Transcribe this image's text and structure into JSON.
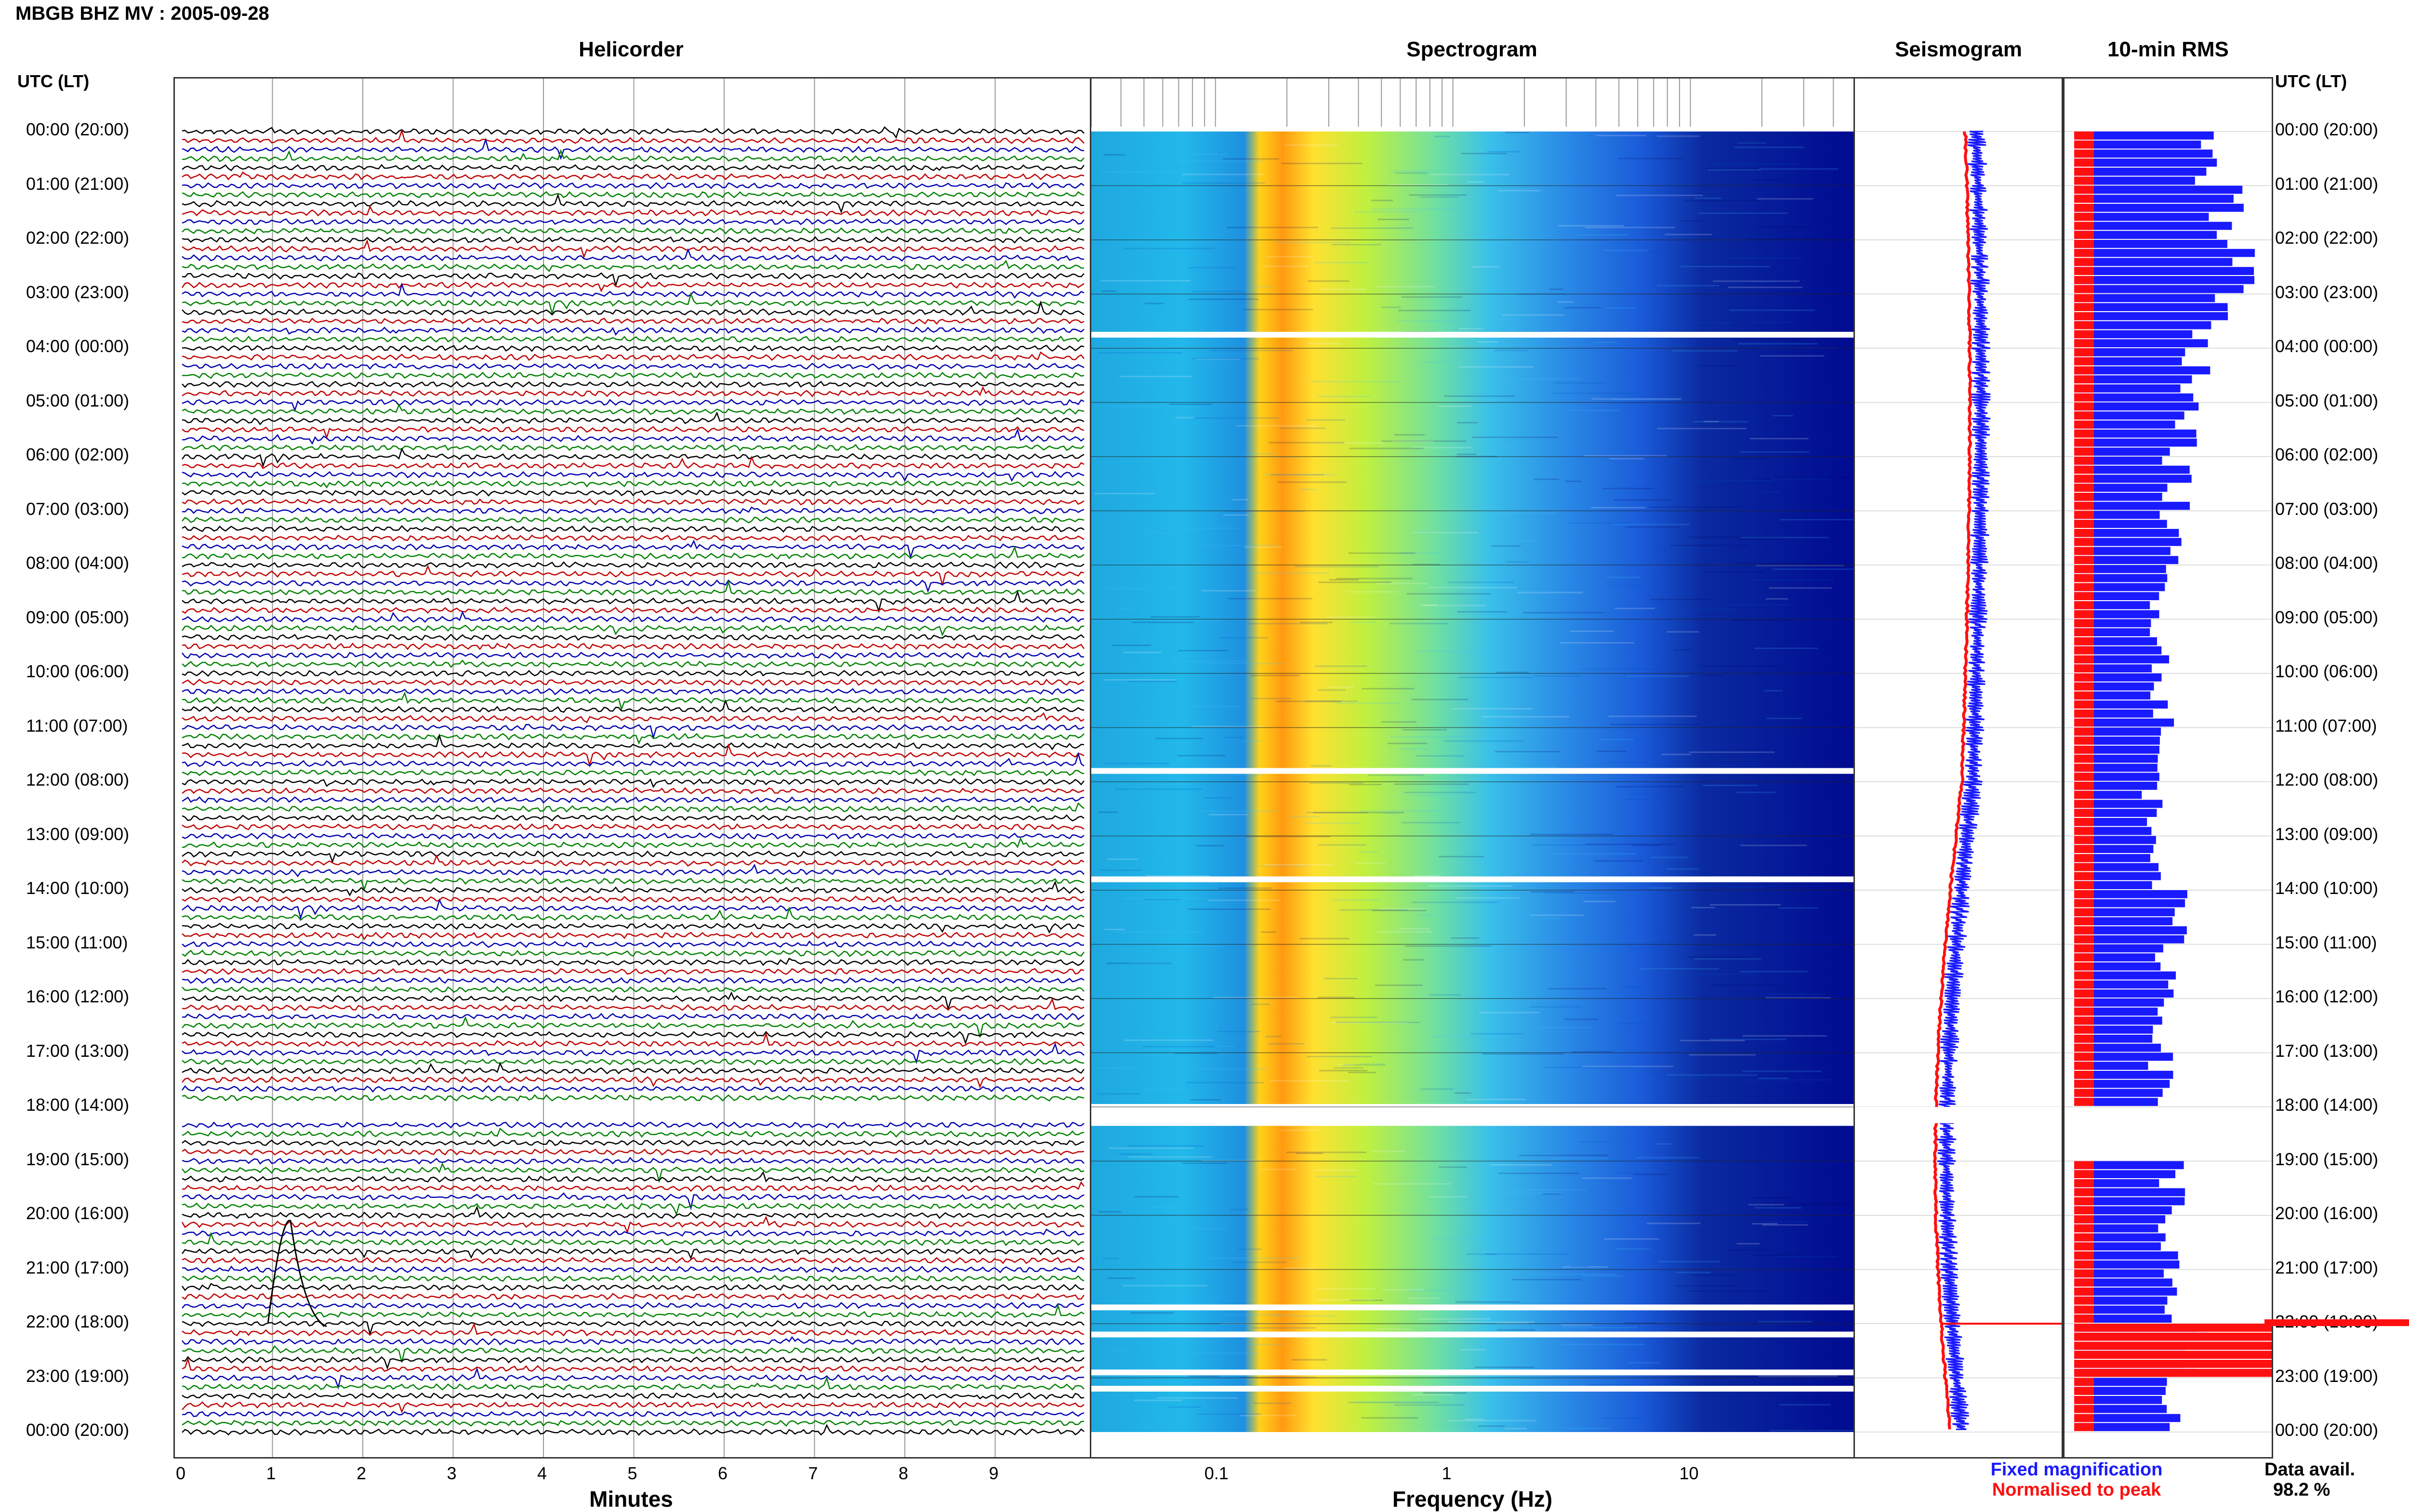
{
  "header": {
    "title": "MBGB BHZ MV : 2005-09-28"
  },
  "panels": {
    "helicorder": {
      "title": "Helicorder",
      "xlabel": "Minutes"
    },
    "spectrogram": {
      "title": "Spectrogram",
      "xlabel": "Frequency (Hz)"
    },
    "seismogram": {
      "title": "Seismogram"
    },
    "rms": {
      "title": "10-min RMS"
    }
  },
  "time_axis": {
    "left_header": "UTC (LT)",
    "right_header": "UTC (LT)",
    "labels": [
      "00:00 (20:00)",
      "01:00 (21:00)",
      "02:00 (22:00)",
      "03:00 (23:00)",
      "04:00 (00:00)",
      "05:00 (01:00)",
      "06:00 (02:00)",
      "07:00 (03:00)",
      "08:00 (04:00)",
      "09:00 (05:00)",
      "10:00 (06:00)",
      "11:00 (07:00)",
      "12:00 (08:00)",
      "13:00 (09:00)",
      "14:00 (10:00)",
      "15:00 (11:00)",
      "16:00 (12:00)",
      "17:00 (13:00)",
      "18:00 (14:00)",
      "19:00 (15:00)",
      "20:00 (16:00)",
      "21:00 (17:00)",
      "22:00 (18:00)",
      "23:00 (19:00)",
      "00:00 (20:00)"
    ]
  },
  "legend": {
    "fixed": "Fixed magnification",
    "normalised": "Normalised to peak",
    "fixed_color": "#1a1aff",
    "normalised_color": "#ff1010"
  },
  "data_availability": {
    "label": "Data avail.",
    "value": "98.2 %"
  },
  "chart_data": [
    {
      "type": "helicorder",
      "xlabel": "Minutes",
      "x_ticks": [
        "0",
        "1",
        "2",
        "3",
        "4",
        "5",
        "6",
        "7",
        "8",
        "9"
      ],
      "xlim": [
        0,
        10
      ],
      "trace_colors": [
        "#000000",
        "#c00000",
        "#0000b0",
        "#008000"
      ],
      "gap_minutes_utc": [
        [
          1080,
          1090
        ]
      ]
    },
    {
      "type": "heatmap",
      "xlabel": "Frequency (Hz)",
      "x_scale": "log",
      "x_ticks": [
        "0.1",
        "1",
        "10"
      ],
      "xlim": [
        0.03,
        50
      ],
      "gaps_hours": [
        3.75,
        11.8,
        13.8,
        18.0,
        18.2,
        21.7,
        22.2,
        22.9,
        23.2
      ],
      "energy_band_hz": [
        0.15,
        0.3
      ]
    },
    {
      "type": "line",
      "name": "Seismogram",
      "series": [
        {
          "name": "Fixed magnification",
          "color": "#1a1aff"
        },
        {
          "name": "Normalised to peak",
          "color": "#ff1010"
        }
      ],
      "event_hour": 22.0
    },
    {
      "type": "bar",
      "name": "10-min RMS",
      "series": [
        {
          "name": "Fixed magnification",
          "color": "#1a1aff",
          "relative_values": [
            0.7,
            0.78,
            0.82,
            0.7,
            0.62,
            0.55,
            0.52,
            0.48,
            0.45,
            0.44,
            0.45,
            0.42,
            0.4,
            0.45,
            0.5,
            0.48,
            0.46,
            0.44,
            0.0,
            0.5,
            0.48,
            0.46,
            0.6,
            0.47
          ]
        },
        {
          "name": "Normalised to peak",
          "color": "#ff1010",
          "relative_values": [
            0.1,
            0.1,
            0.1,
            0.1,
            0.1,
            0.1,
            0.1,
            0.1,
            0.1,
            0.1,
            0.1,
            0.1,
            0.1,
            0.1,
            0.1,
            0.1,
            0.1,
            0.1,
            0.0,
            0.1,
            0.1,
            0.1,
            1.0,
            0.1
          ]
        }
      ]
    }
  ]
}
